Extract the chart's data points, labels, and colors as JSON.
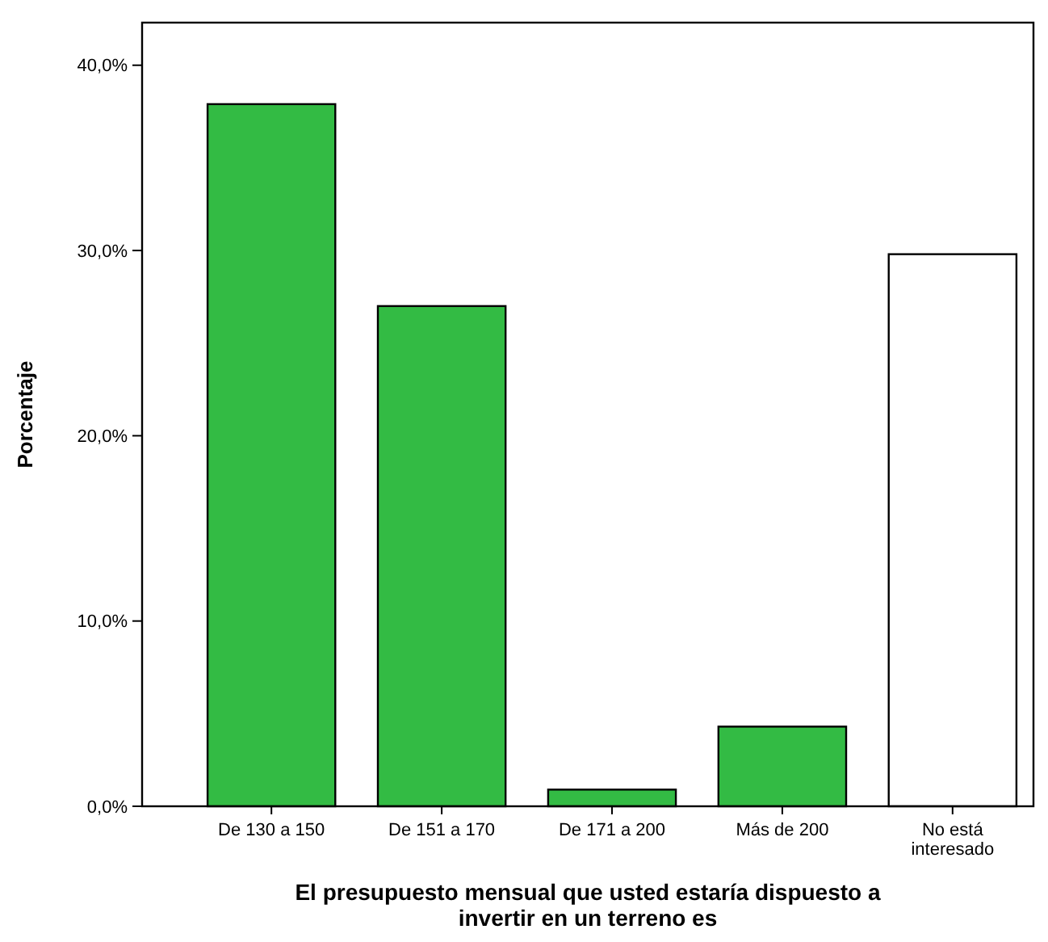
{
  "chart_data": {
    "type": "bar",
    "xlabel": "El presupuesto mensual que usted estaría dispuesto a invertir en un terreno es",
    "ylabel": "Porcentaje",
    "categories": [
      "De 130 a 150",
      "De 151 a 170",
      "De 171 a 200",
      "Más de 200",
      "No está interesado"
    ],
    "values": [
      37.9,
      27.0,
      0.9,
      4.3,
      29.8
    ],
    "colors": [
      "#33bb44",
      "#33bb44",
      "#33bb44",
      "#33bb44",
      "#ffffff"
    ],
    "ylim": [
      0,
      42.3
    ],
    "yticks": [
      {
        "value": 0,
        "label": "0,0%"
      },
      {
        "value": 10,
        "label": "10,0%"
      },
      {
        "value": 20,
        "label": "20,0%"
      },
      {
        "value": 30,
        "label": "30,0%"
      },
      {
        "value": 40,
        "label": "40,0%"
      }
    ],
    "grid": false
  }
}
